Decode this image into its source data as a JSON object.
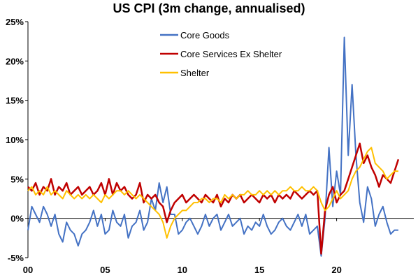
{
  "chart_data": {
    "type": "line",
    "title": "US CPI (3m change, annualised)",
    "xlabel": "",
    "ylabel": "",
    "x_start": 2000,
    "x_step": 0.25,
    "xlim": [
      2000,
      2025
    ],
    "ylim": [
      -5,
      25
    ],
    "x_ticks": [
      2000,
      2005,
      2010,
      2015,
      2020
    ],
    "x_tick_labels": [
      "00",
      "05",
      "10",
      "15",
      "20"
    ],
    "y_ticks": [
      -5,
      0,
      5,
      10,
      15,
      20,
      25
    ],
    "y_tick_labels": [
      "-5%",
      "0%",
      "5%",
      "10%",
      "15%",
      "20%",
      "25%"
    ],
    "grid": false,
    "legend_position": "top-center",
    "series": [
      {
        "name": "Core Goods",
        "color": "#4472C4",
        "values": [
          -1.5,
          1.5,
          0.5,
          -0.5,
          1.5,
          0.5,
          -1.0,
          0.5,
          -2.0,
          -3.0,
          -0.5,
          -1.5,
          -2.0,
          -3.5,
          -2.0,
          -1.5,
          -0.5,
          1.0,
          -1.0,
          0.5,
          -2.0,
          -1.5,
          1.0,
          -0.5,
          -1.0,
          0.5,
          -2.5,
          -1.0,
          -0.5,
          1.0,
          -1.5,
          -0.5,
          2.5,
          1.0,
          4.5,
          2.0,
          4.0,
          0.5,
          0.5,
          -2.0,
          -1.5,
          -0.5,
          0.0,
          -1.0,
          -2.0,
          -1.0,
          0.5,
          -1.0,
          0.0,
          0.5,
          -1.5,
          -0.5,
          0.5,
          -1.0,
          -0.5,
          0.0,
          -2.0,
          -1.0,
          -1.5,
          -0.5,
          -1.0,
          0.5,
          -1.0,
          -2.0,
          -1.5,
          -0.5,
          0.0,
          -1.0,
          -1.5,
          -0.5,
          0.5,
          -1.0,
          0.5,
          -2.0,
          -1.5,
          -1.0,
          -4.8,
          0.0,
          9.0,
          1.5,
          6.0,
          3.0,
          23.0,
          8.0,
          17.0,
          8.0,
          2.0,
          -0.5,
          4.0,
          2.5,
          -1.0,
          0.5,
          1.5,
          -0.5,
          -2.0,
          -1.5,
          -1.5
        ]
      },
      {
        "name": "Core Services Ex Shelter",
        "color": "#C00000",
        "values": [
          4.0,
          3.5,
          4.5,
          3.0,
          4.0,
          3.5,
          5.0,
          3.0,
          4.0,
          3.5,
          4.5,
          3.0,
          3.5,
          4.0,
          3.0,
          3.5,
          4.0,
          3.0,
          3.5,
          4.5,
          3.0,
          5.0,
          3.0,
          4.5,
          3.5,
          4.0,
          3.0,
          2.5,
          3.0,
          4.5,
          2.0,
          3.0,
          2.5,
          3.0,
          2.0,
          1.5,
          -0.5,
          1.0,
          2.0,
          2.5,
          3.0,
          2.0,
          2.5,
          3.0,
          2.5,
          2.0,
          3.0,
          2.5,
          2.0,
          3.0,
          1.5,
          2.5,
          2.0,
          3.0,
          2.5,
          3.0,
          2.0,
          2.5,
          3.0,
          2.5,
          2.0,
          3.0,
          2.5,
          3.0,
          2.0,
          3.0,
          2.5,
          3.0,
          2.5,
          3.5,
          3.0,
          2.5,
          3.0,
          3.5,
          3.0,
          3.5,
          -4.5,
          1.0,
          3.0,
          4.0,
          2.0,
          3.0,
          3.5,
          5.0,
          6.5,
          8.0,
          9.5,
          7.0,
          8.0,
          6.5,
          5.5,
          4.0,
          5.5,
          5.0,
          4.5,
          6.0,
          7.5
        ]
      },
      {
        "name": "Shelter",
        "color": "#FFC000",
        "values": [
          3.5,
          4.0,
          3.0,
          3.5,
          3.0,
          4.0,
          3.0,
          3.5,
          3.0,
          2.5,
          3.5,
          3.0,
          2.5,
          3.0,
          2.5,
          3.0,
          2.5,
          3.0,
          2.5,
          2.0,
          3.0,
          2.5,
          3.0,
          3.5,
          3.5,
          3.0,
          3.5,
          3.0,
          2.5,
          3.0,
          2.5,
          2.0,
          1.5,
          1.0,
          0.5,
          -0.5,
          -2.5,
          -1.0,
          0.0,
          0.5,
          1.0,
          1.0,
          1.5,
          2.0,
          2.0,
          2.5,
          2.5,
          2.0,
          2.5,
          2.5,
          2.0,
          3.0,
          2.5,
          3.0,
          2.5,
          3.0,
          3.0,
          3.5,
          3.0,
          3.0,
          3.5,
          3.0,
          3.5,
          3.0,
          3.5,
          3.0,
          3.5,
          3.5,
          4.0,
          3.5,
          3.5,
          4.0,
          3.5,
          3.5,
          4.0,
          3.5,
          2.0,
          1.0,
          1.5,
          2.5,
          3.5,
          2.5,
          3.0,
          3.5,
          5.0,
          6.0,
          6.5,
          7.5,
          8.5,
          9.0,
          7.0,
          6.5,
          6.0,
          5.0,
          5.5,
          6.0,
          6.0
        ]
      }
    ]
  }
}
